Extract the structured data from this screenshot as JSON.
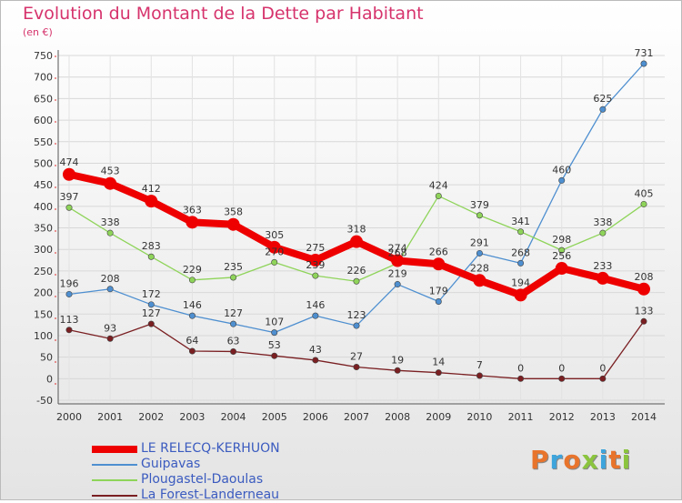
{
  "title": "Evolution du Montant de la Dette par Habitant",
  "subtitle": "(en €)",
  "logo": {
    "text": "Proxiti",
    "colors": [
      "#e8742c",
      "#3ea4dc",
      "#e8742c",
      "#8bc43f",
      "#3ea4dc",
      "#e8742c",
      "#8bc43f"
    ]
  },
  "chart_data": {
    "type": "line",
    "title": "Evolution du Montant de la Dette par Habitant",
    "ylabel": "(en €)",
    "x": [
      "2000",
      "2001",
      "2002",
      "2003",
      "2004",
      "2005",
      "2006",
      "2007",
      "2008",
      "2009",
      "2010",
      "2011",
      "2012",
      "2013",
      "2014"
    ],
    "ylim": [
      -50,
      750
    ],
    "yticks": [
      -50,
      0,
      50,
      100,
      150,
      200,
      250,
      300,
      350,
      400,
      450,
      500,
      550,
      600,
      650,
      700,
      750
    ],
    "grid": true,
    "legend_position": "bottom-left",
    "series": [
      {
        "name": "LE RELECQ-KERHUON",
        "color": "#ee0000",
        "emphasis": true,
        "values": [
          474,
          453,
          412,
          363,
          358,
          305,
          275,
          318,
          274,
          266,
          228,
          194,
          256,
          233,
          208
        ]
      },
      {
        "name": "Guipavas",
        "color": "#4e8fd0",
        "values": [
          196,
          208,
          172,
          146,
          127,
          107,
          146,
          123,
          219,
          179,
          291,
          268,
          460,
          625,
          731
        ]
      },
      {
        "name": "Plougastel-Daoulas",
        "color": "#8fd45a",
        "values": [
          397,
          338,
          283,
          229,
          235,
          270,
          239,
          226,
          268,
          424,
          379,
          341,
          298,
          338,
          405
        ]
      },
      {
        "name": "La Forest-Landerneau",
        "color": "#7a1f22",
        "values": [
          113,
          93,
          127,
          64,
          63,
          53,
          43,
          27,
          19,
          14,
          7,
          0,
          0,
          0,
          133
        ]
      }
    ]
  }
}
